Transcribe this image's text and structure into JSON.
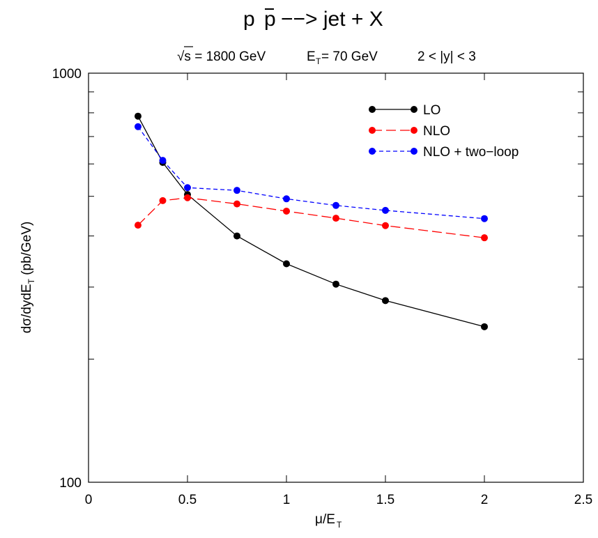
{
  "chart_data": {
    "type": "line",
    "title": "p p̄ −−> jet + X",
    "title_parts": {
      "p": "p",
      "pbar": "p",
      "rest": "−−> jet + X"
    },
    "subtitle_parts": {
      "sqrt": "√s = 1800 GeV",
      "et_main": "E",
      "et_sub": "T",
      "et_value": " = 70 GeV",
      "y_range": "2 < |y| < 3"
    },
    "xlabel": {
      "main": "μ/E",
      "sub": "T"
    },
    "ylabel": {
      "main": "dσ/dydE",
      "sub": "T",
      "tail": " (pb/GeV)"
    },
    "xlim": [
      0,
      2.5
    ],
    "ylim": [
      100,
      1000
    ],
    "y_scale": "log",
    "x_ticks": [
      "0",
      "0.5",
      "1",
      "1.5",
      "2",
      "2.5"
    ],
    "y_ticks": [
      "100",
      "1000"
    ],
    "grid": false,
    "legend_position": "top-right",
    "series": [
      {
        "name": "LO",
        "color": "#000000",
        "dash": "solid",
        "x": [
          0.25,
          0.375,
          0.5,
          0.75,
          1.0,
          1.25,
          1.5,
          2.0
        ],
        "y": [
          785,
          605,
          505,
          400,
          342,
          305,
          278,
          240
        ]
      },
      {
        "name": "NLO",
        "color": "#ff0000",
        "dash": "long-dash",
        "x": [
          0.25,
          0.375,
          0.5,
          0.75,
          1.0,
          1.25,
          1.5,
          2.0
        ],
        "y": [
          425,
          488,
          496,
          479,
          460,
          442,
          424,
          396
        ]
      },
      {
        "name": "NLO + two−loop",
        "color": "#0000ff",
        "dash": "short-dash",
        "x": [
          0.25,
          0.375,
          0.5,
          0.75,
          1.0,
          1.25,
          1.5,
          2.0
        ],
        "y": [
          740,
          612,
          525,
          517,
          493,
          475,
          462,
          441
        ]
      }
    ]
  }
}
